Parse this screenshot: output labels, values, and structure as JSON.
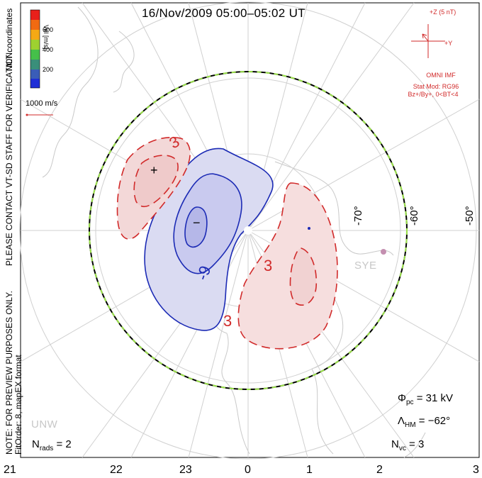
{
  "title": "16/Nov/2009 05:00–05:02 UT",
  "notes": {
    "left_top": "MLT coordinates",
    "left_main": "PLEASE CONTACT VT-SD STAFF FOR VERIFICATION.",
    "left_bottom1": "NOTE: FOR PREVIEW PURPOSES ONLY.",
    "left_bottom2": "FitOrder: 8, mapEX format"
  },
  "colorbar": {
    "title": "Vel [m/s]",
    "ticks": [
      "600",
      "400",
      "200"
    ],
    "colors": [
      "#e8201a",
      "#f06a12",
      "#f4a915",
      "#9ed130",
      "#45c04a",
      "#3a8f7a",
      "#3a5db8",
      "#1f2fd6"
    ]
  },
  "reference_vector": {
    "label": "1000 m/s",
    "color": "#d12a2a"
  },
  "imf": {
    "scale_label": "+Z (5 nT)",
    "y_label": "+Y",
    "source": "OMNI IMF",
    "model_line1": "Stat Mod: RG96",
    "model_line2": "Bz+/By+, 0<BT<4",
    "color": "#d12a2a"
  },
  "stats": {
    "phi_pc_label": "Φ",
    "phi_pc_sub": "pc",
    "phi_pc_value": "= 31 kV",
    "lambda_label": "Λ",
    "lambda_sub": "HM",
    "lambda_value": "= −62°",
    "nrads_label": "N",
    "nrads_sub": "rads",
    "nrads_value": "= 2",
    "nvc_label": "N",
    "nvc_sub": "vc",
    "nvc_value": "= 3"
  },
  "mlt_ticks": [
    "21",
    "22",
    "23",
    "0",
    "1",
    "2",
    "3"
  ],
  "latitude_labels": [
    "-70°",
    "-60°",
    "-50°"
  ],
  "stations": [
    "SYE",
    "UNW"
  ],
  "contour_labels": [
    "3",
    "-9",
    "3",
    "3",
    "+",
    "−"
  ]
}
